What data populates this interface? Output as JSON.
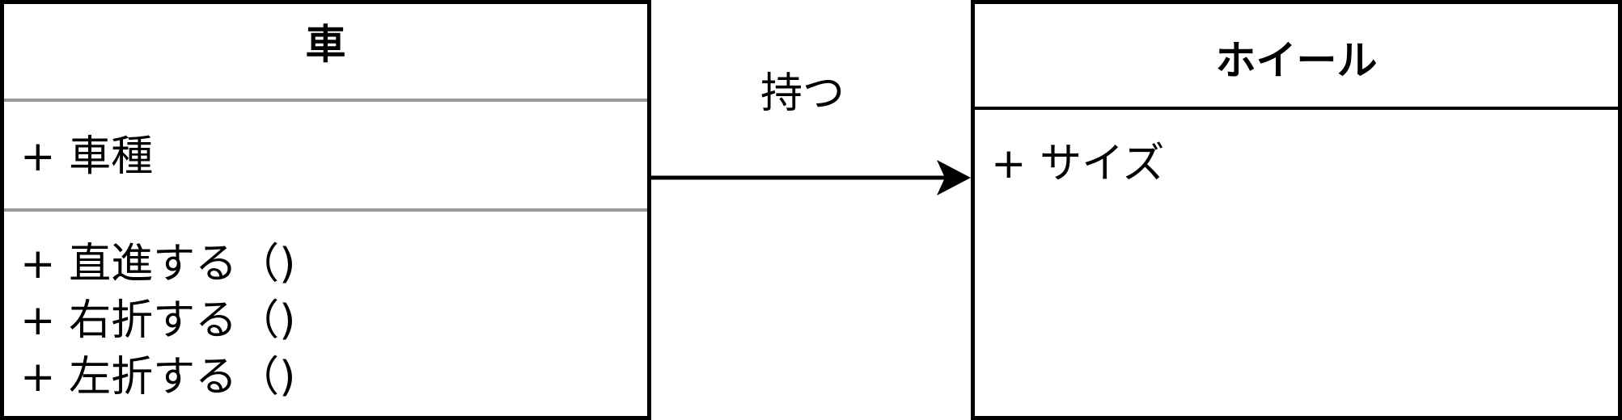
{
  "classes": {
    "car": {
      "name": "車",
      "attributes": [
        "+ 車種"
      ],
      "operations": [
        "+ 直進する（)",
        "+ 右折する（)",
        "+ 左折する（)"
      ]
    },
    "wheel": {
      "name": "ホイール",
      "attributes": [
        "+ サイズ"
      ]
    }
  },
  "association": {
    "label": "持つ",
    "from": "車",
    "to": "ホイール",
    "arrow": "open-filled-arrowhead"
  },
  "colors": {
    "line": "#000000",
    "separator": "#9a9a9a",
    "background": "#ffffff"
  }
}
